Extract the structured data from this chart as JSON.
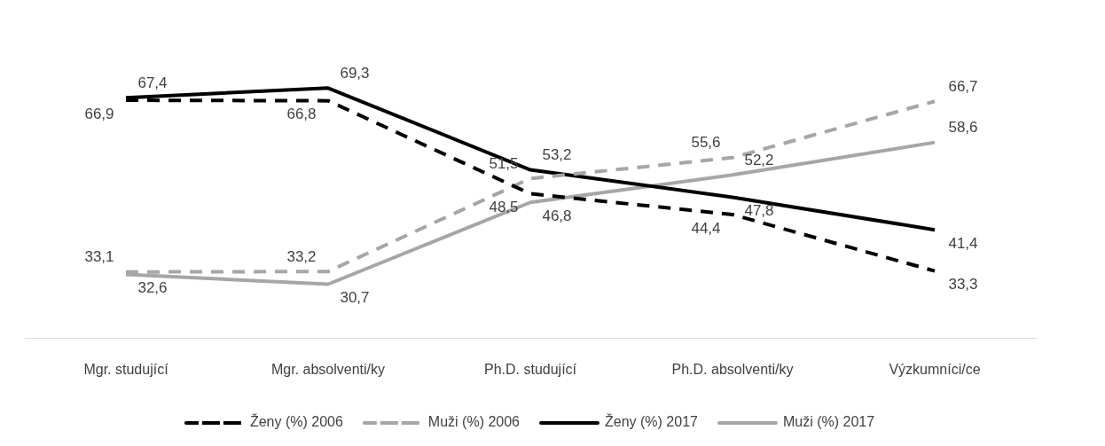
{
  "chart_data": {
    "type": "line",
    "categories": [
      "Mgr. studující",
      "Mgr. absolventi/ky",
      "Ph.D. studující",
      "Ph.D. absolventi/ky",
      "Výzkumníci/ce"
    ],
    "series": [
      {
        "name": "Ženy (%) 2006",
        "color": "#000000",
        "line_style": "dashed",
        "values": [
          66.9,
          66.8,
          48.5,
          44.4,
          33.3
        ],
        "value_labels": [
          "66,9",
          "66,8",
          "48,5",
          "44,4",
          "33,3"
        ]
      },
      {
        "name": "Muži (%) 2006",
        "color": "#a6a6a6",
        "line_style": "dashed",
        "values": [
          33.1,
          33.2,
          51.5,
          55.6,
          66.7
        ],
        "value_labels": [
          "33,1",
          "33,2",
          "51,5",
          "55,6",
          "66,7"
        ]
      },
      {
        "name": "Ženy (%) 2017",
        "color": "#000000",
        "line_style": "solid",
        "values": [
          67.4,
          69.3,
          53.2,
          47.8,
          41.4
        ],
        "value_labels": [
          "67,4",
          "69,3",
          "53,2",
          "47,8",
          "41,4"
        ]
      },
      {
        "name": "Muži (%) 2017",
        "color": "#a6a6a6",
        "line_style": "solid",
        "values": [
          32.6,
          30.7,
          46.8,
          52.2,
          58.6
        ],
        "value_labels": [
          "32,6",
          "30,7",
          "46,8",
          "52,2",
          "58,6"
        ]
      }
    ],
    "grid": false,
    "legend": "bottom",
    "marker": "none",
    "tick_labels": "x"
  }
}
